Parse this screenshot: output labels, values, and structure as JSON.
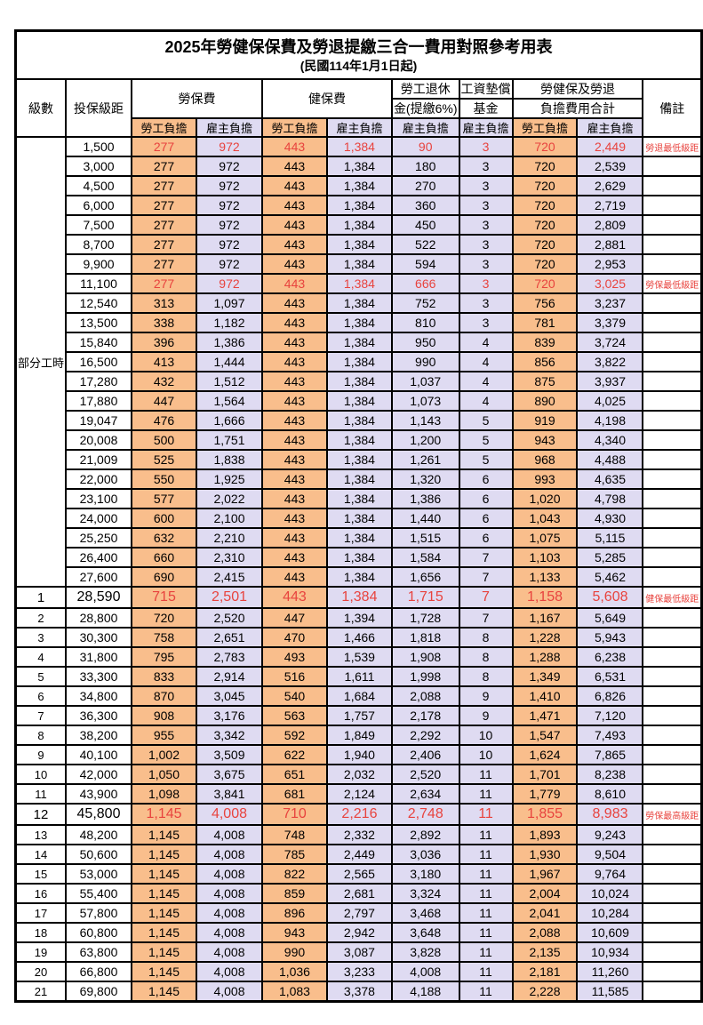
{
  "title": "2025年勞健保保費及勞退提繳三合一費用對照參考用表",
  "subtitle": "(民國114年1月1日起)",
  "header": {
    "level": "級數",
    "bracket": "投保級距",
    "labor_ins": "勞保費",
    "health_ins": "健保費",
    "pension_line1": "勞工退休",
    "pension_line2": "金(提繳6%)",
    "wage_fund_line1": "工資墊償",
    "wage_fund_line2": "基金",
    "total_line1": "勞健保及勞退",
    "total_line2": "負擔費用合計",
    "remark": "備註",
    "worker_label": "勞工負擔",
    "employer_label": "雇主負擔"
  },
  "part_time_label": "部分工時",
  "colors": {
    "worker_bg": "#F9BE8C",
    "employer_bg": "#DFDBF2",
    "highlight_red": "#E8433E",
    "grid": "#000000"
  },
  "column_keys": [
    "labor-worker",
    "labor-employer",
    "health-worker",
    "health-employer",
    "pension-employer",
    "wagefund-employer",
    "total-worker",
    "total-employer"
  ],
  "rows": [
    {
      "level": "",
      "bracket": "1,500",
      "values": [
        "277",
        "972",
        "443",
        "1,384",
        "90",
        "3",
        "720",
        "2,449"
      ],
      "remark": "勞退最低級距",
      "red": true,
      "big": false
    },
    {
      "level": "",
      "bracket": "3,000",
      "values": [
        "277",
        "972",
        "443",
        "1,384",
        "180",
        "3",
        "720",
        "2,539"
      ],
      "remark": "",
      "red": false,
      "big": false
    },
    {
      "level": "",
      "bracket": "4,500",
      "values": [
        "277",
        "972",
        "443",
        "1,384",
        "270",
        "3",
        "720",
        "2,629"
      ],
      "remark": "",
      "red": false,
      "big": false
    },
    {
      "level": "",
      "bracket": "6,000",
      "values": [
        "277",
        "972",
        "443",
        "1,384",
        "360",
        "3",
        "720",
        "2,719"
      ],
      "remark": "",
      "red": false,
      "big": false
    },
    {
      "level": "",
      "bracket": "7,500",
      "values": [
        "277",
        "972",
        "443",
        "1,384",
        "450",
        "3",
        "720",
        "2,809"
      ],
      "remark": "",
      "red": false,
      "big": false
    },
    {
      "level": "",
      "bracket": "8,700",
      "values": [
        "277",
        "972",
        "443",
        "1,384",
        "522",
        "3",
        "720",
        "2,881"
      ],
      "remark": "",
      "red": false,
      "big": false
    },
    {
      "level": "",
      "bracket": "9,900",
      "values": [
        "277",
        "972",
        "443",
        "1,384",
        "594",
        "3",
        "720",
        "2,953"
      ],
      "remark": "",
      "red": false,
      "big": false
    },
    {
      "level": "",
      "bracket": "11,100",
      "values": [
        "277",
        "972",
        "443",
        "1,384",
        "666",
        "3",
        "720",
        "3,025"
      ],
      "remark": "勞保最低級距",
      "red": true,
      "big": false
    },
    {
      "level": "",
      "bracket": "12,540",
      "values": [
        "313",
        "1,097",
        "443",
        "1,384",
        "752",
        "3",
        "756",
        "3,237"
      ],
      "remark": "",
      "red": false,
      "big": false
    },
    {
      "level": "",
      "bracket": "13,500",
      "values": [
        "338",
        "1,182",
        "443",
        "1,384",
        "810",
        "3",
        "781",
        "3,379"
      ],
      "remark": "",
      "red": false,
      "big": false
    },
    {
      "level": "",
      "bracket": "15,840",
      "values": [
        "396",
        "1,386",
        "443",
        "1,384",
        "950",
        "4",
        "839",
        "3,724"
      ],
      "remark": "",
      "red": false,
      "big": false
    },
    {
      "level": "",
      "bracket": "16,500",
      "values": [
        "413",
        "1,444",
        "443",
        "1,384",
        "990",
        "4",
        "856",
        "3,822"
      ],
      "remark": "",
      "red": false,
      "big": false
    },
    {
      "level": "",
      "bracket": "17,280",
      "values": [
        "432",
        "1,512",
        "443",
        "1,384",
        "1,037",
        "4",
        "875",
        "3,937"
      ],
      "remark": "",
      "red": false,
      "big": false
    },
    {
      "level": "",
      "bracket": "17,880",
      "values": [
        "447",
        "1,564",
        "443",
        "1,384",
        "1,073",
        "4",
        "890",
        "4,025"
      ],
      "remark": "",
      "red": false,
      "big": false
    },
    {
      "level": "",
      "bracket": "19,047",
      "values": [
        "476",
        "1,666",
        "443",
        "1,384",
        "1,143",
        "5",
        "919",
        "4,198"
      ],
      "remark": "",
      "red": false,
      "big": false
    },
    {
      "level": "",
      "bracket": "20,008",
      "values": [
        "500",
        "1,751",
        "443",
        "1,384",
        "1,200",
        "5",
        "943",
        "4,340"
      ],
      "remark": "",
      "red": false,
      "big": false
    },
    {
      "level": "",
      "bracket": "21,009",
      "values": [
        "525",
        "1,838",
        "443",
        "1,384",
        "1,261",
        "5",
        "968",
        "4,488"
      ],
      "remark": "",
      "red": false,
      "big": false
    },
    {
      "level": "",
      "bracket": "22,000",
      "values": [
        "550",
        "1,925",
        "443",
        "1,384",
        "1,320",
        "6",
        "993",
        "4,635"
      ],
      "remark": "",
      "red": false,
      "big": false
    },
    {
      "level": "",
      "bracket": "23,100",
      "values": [
        "577",
        "2,022",
        "443",
        "1,384",
        "1,386",
        "6",
        "1,020",
        "4,798"
      ],
      "remark": "",
      "red": false,
      "big": false
    },
    {
      "level": "",
      "bracket": "24,000",
      "values": [
        "600",
        "2,100",
        "443",
        "1,384",
        "1,440",
        "6",
        "1,043",
        "4,930"
      ],
      "remark": "",
      "red": false,
      "big": false
    },
    {
      "level": "",
      "bracket": "25,250",
      "values": [
        "632",
        "2,210",
        "443",
        "1,384",
        "1,515",
        "6",
        "1,075",
        "5,115"
      ],
      "remark": "",
      "red": false,
      "big": false
    },
    {
      "level": "",
      "bracket": "26,400",
      "values": [
        "660",
        "2,310",
        "443",
        "1,384",
        "1,584",
        "7",
        "1,103",
        "5,285"
      ],
      "remark": "",
      "red": false,
      "big": false
    },
    {
      "level": "",
      "bracket": "27,600",
      "values": [
        "690",
        "2,415",
        "443",
        "1,384",
        "1,656",
        "7",
        "1,133",
        "5,462"
      ],
      "remark": "",
      "red": false,
      "big": false
    },
    {
      "level": "1",
      "bracket": "28,590",
      "values": [
        "715",
        "2,501",
        "443",
        "1,384",
        "1,715",
        "7",
        "1,158",
        "5,608"
      ],
      "remark": "健保最低級距",
      "red": true,
      "big": true
    },
    {
      "level": "2",
      "bracket": "28,800",
      "values": [
        "720",
        "2,520",
        "447",
        "1,394",
        "1,728",
        "7",
        "1,167",
        "5,649"
      ],
      "remark": "",
      "red": false,
      "big": false
    },
    {
      "level": "3",
      "bracket": "30,300",
      "values": [
        "758",
        "2,651",
        "470",
        "1,466",
        "1,818",
        "8",
        "1,228",
        "5,943"
      ],
      "remark": "",
      "red": false,
      "big": false
    },
    {
      "level": "4",
      "bracket": "31,800",
      "values": [
        "795",
        "2,783",
        "493",
        "1,539",
        "1,908",
        "8",
        "1,288",
        "6,238"
      ],
      "remark": "",
      "red": false,
      "big": false
    },
    {
      "level": "5",
      "bracket": "33,300",
      "values": [
        "833",
        "2,914",
        "516",
        "1,611",
        "1,998",
        "8",
        "1,349",
        "6,531"
      ],
      "remark": "",
      "red": false,
      "big": false
    },
    {
      "level": "6",
      "bracket": "34,800",
      "values": [
        "870",
        "3,045",
        "540",
        "1,684",
        "2,088",
        "9",
        "1,410",
        "6,826"
      ],
      "remark": "",
      "red": false,
      "big": false
    },
    {
      "level": "7",
      "bracket": "36,300",
      "values": [
        "908",
        "3,176",
        "563",
        "1,757",
        "2,178",
        "9",
        "1,471",
        "7,120"
      ],
      "remark": "",
      "red": false,
      "big": false
    },
    {
      "level": "8",
      "bracket": "38,200",
      "values": [
        "955",
        "3,342",
        "592",
        "1,849",
        "2,292",
        "10",
        "1,547",
        "7,493"
      ],
      "remark": "",
      "red": false,
      "big": false
    },
    {
      "level": "9",
      "bracket": "40,100",
      "values": [
        "1,002",
        "3,509",
        "622",
        "1,940",
        "2,406",
        "10",
        "1,624",
        "7,865"
      ],
      "remark": "",
      "red": false,
      "big": false
    },
    {
      "level": "10",
      "bracket": "42,000",
      "values": [
        "1,050",
        "3,675",
        "651",
        "2,032",
        "2,520",
        "11",
        "1,701",
        "8,238"
      ],
      "remark": "",
      "red": false,
      "big": false
    },
    {
      "level": "11",
      "bracket": "43,900",
      "values": [
        "1,098",
        "3,841",
        "681",
        "2,124",
        "2,634",
        "11",
        "1,779",
        "8,610"
      ],
      "remark": "",
      "red": false,
      "big": false
    },
    {
      "level": "12",
      "bracket": "45,800",
      "values": [
        "1,145",
        "4,008",
        "710",
        "2,216",
        "2,748",
        "11",
        "1,855",
        "8,983"
      ],
      "remark": "勞保最高級距",
      "red": true,
      "big": true
    },
    {
      "level": "13",
      "bracket": "48,200",
      "values": [
        "1,145",
        "4,008",
        "748",
        "2,332",
        "2,892",
        "11",
        "1,893",
        "9,243"
      ],
      "remark": "",
      "red": false,
      "big": false
    },
    {
      "level": "14",
      "bracket": "50,600",
      "values": [
        "1,145",
        "4,008",
        "785",
        "2,449",
        "3,036",
        "11",
        "1,930",
        "9,504"
      ],
      "remark": "",
      "red": false,
      "big": false
    },
    {
      "level": "15",
      "bracket": "53,000",
      "values": [
        "1,145",
        "4,008",
        "822",
        "2,565",
        "3,180",
        "11",
        "1,967",
        "9,764"
      ],
      "remark": "",
      "red": false,
      "big": false
    },
    {
      "level": "16",
      "bracket": "55,400",
      "values": [
        "1,145",
        "4,008",
        "859",
        "2,681",
        "3,324",
        "11",
        "2,004",
        "10,024"
      ],
      "remark": "",
      "red": false,
      "big": false
    },
    {
      "level": "17",
      "bracket": "57,800",
      "values": [
        "1,145",
        "4,008",
        "896",
        "2,797",
        "3,468",
        "11",
        "2,041",
        "10,284"
      ],
      "remark": "",
      "red": false,
      "big": false
    },
    {
      "level": "18",
      "bracket": "60,800",
      "values": [
        "1,145",
        "4,008",
        "943",
        "2,942",
        "3,648",
        "11",
        "2,088",
        "10,609"
      ],
      "remark": "",
      "red": false,
      "big": false
    },
    {
      "level": "19",
      "bracket": "63,800",
      "values": [
        "1,145",
        "4,008",
        "990",
        "3,087",
        "3,828",
        "11",
        "2,135",
        "10,934"
      ],
      "remark": "",
      "red": false,
      "big": false
    },
    {
      "level": "20",
      "bracket": "66,800",
      "values": [
        "1,145",
        "4,008",
        "1,036",
        "3,233",
        "4,008",
        "11",
        "2,181",
        "11,260"
      ],
      "remark": "",
      "red": false,
      "big": false
    },
    {
      "level": "21",
      "bracket": "69,800",
      "values": [
        "1,145",
        "4,008",
        "1,083",
        "3,378",
        "4,188",
        "11",
        "2,228",
        "11,585"
      ],
      "remark": "",
      "red": false,
      "big": false
    }
  ]
}
